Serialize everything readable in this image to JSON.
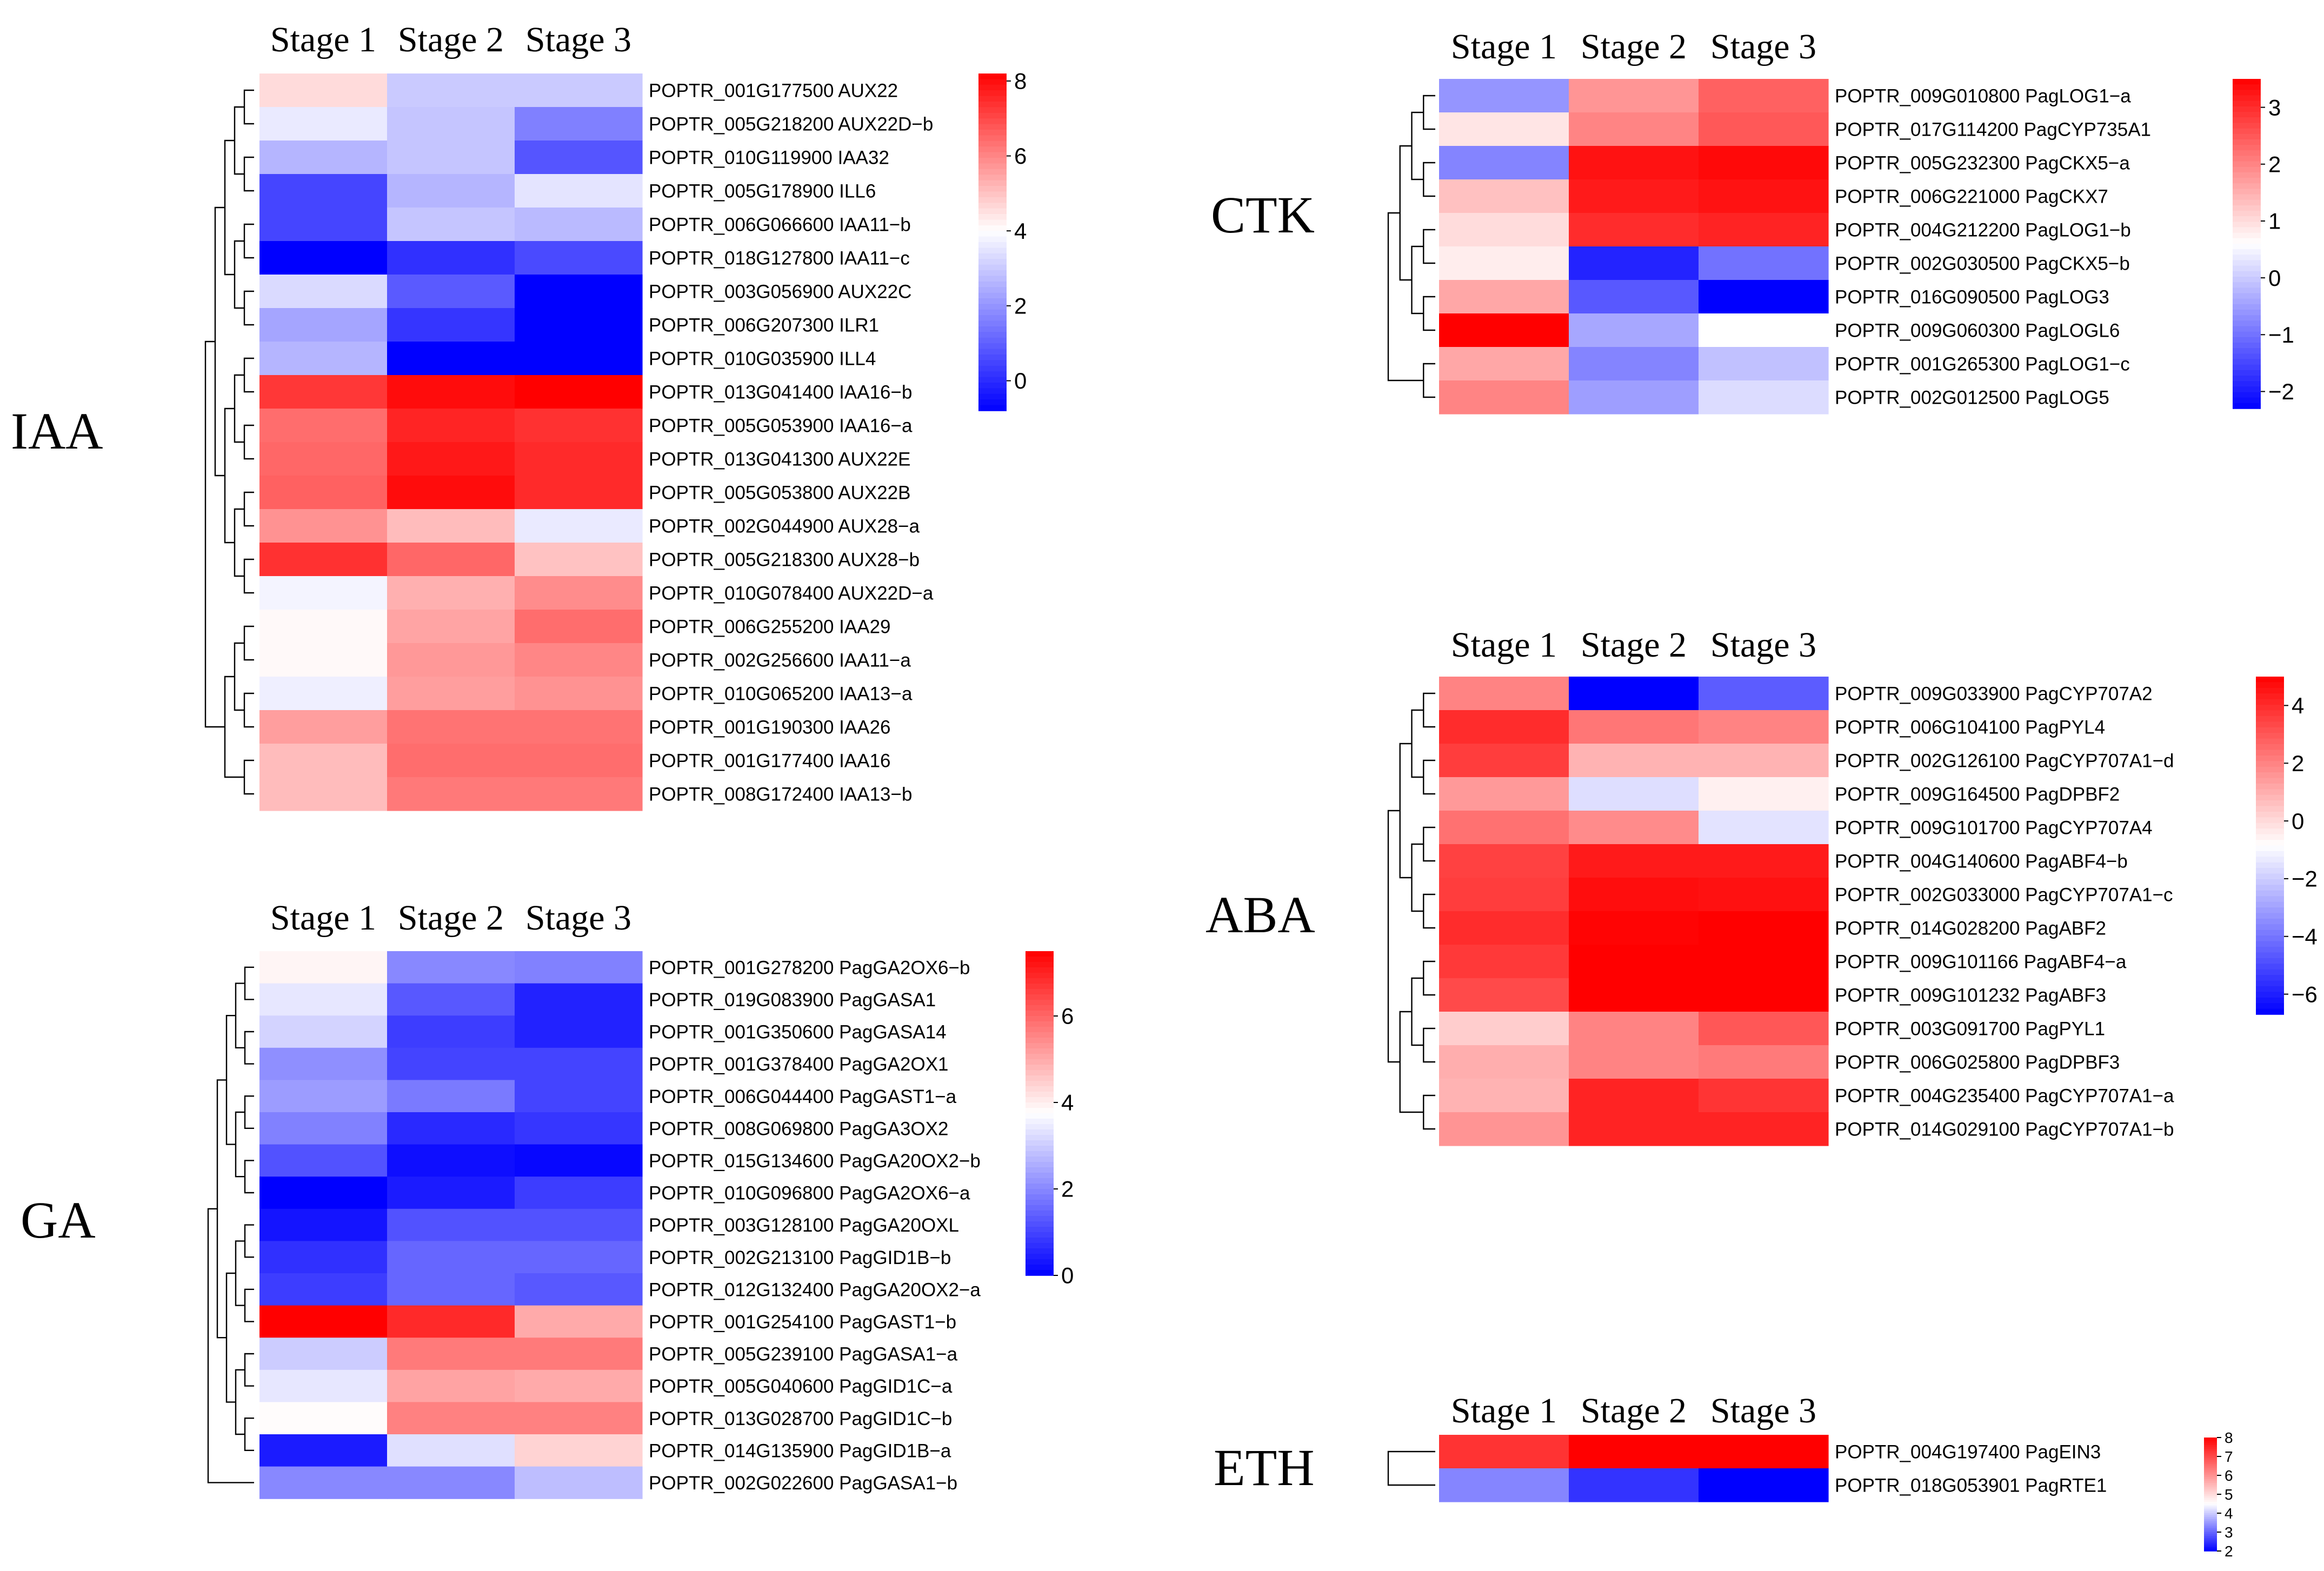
{
  "chart_data": [
    {
      "type": "heatmap",
      "title": "IAA",
      "columns": [
        "Stage 1",
        "Stage 2",
        "Stage 3"
      ],
      "colorbar": {
        "ticks": [
          0,
          2,
          4,
          6,
          8
        ],
        "min": -0.8,
        "max": 8.2,
        "mid": 4,
        "tick_labels": [
          "0",
          "2",
          "4",
          "6",
          "8"
        ]
      },
      "rows": [
        {
          "gene": "POPTR_001G177500",
          "name": "AUX22",
          "values": [
            4.6,
            3.0,
            3.0
          ]
        },
        {
          "gene": "POPTR_005G218200",
          "name": "AUX22D−b",
          "values": [
            3.6,
            2.9,
            1.6
          ]
        },
        {
          "gene": "POPTR_010G119900",
          "name": "IAA32",
          "values": [
            2.6,
            2.9,
            0.8
          ]
        },
        {
          "gene": "POPTR_005G178900",
          "name": "ILL6",
          "values": [
            0.5,
            2.6,
            3.5
          ]
        },
        {
          "gene": "POPTR_006G066600",
          "name": "IAA11−b",
          "values": [
            0.5,
            2.9,
            2.7
          ]
        },
        {
          "gene": "POPTR_018G127800",
          "name": "IAA11−c",
          "values": [
            -0.8,
            0.1,
            0.6
          ]
        },
        {
          "gene": "POPTR_003G056900",
          "name": "AUX22C",
          "values": [
            3.3,
            0.9,
            -0.8
          ]
        },
        {
          "gene": "POPTR_006G207300",
          "name": "ILR1",
          "values": [
            2.3,
            0.2,
            -0.8
          ]
        },
        {
          "gene": "POPTR_010G035900",
          "name": "ILL4",
          "values": [
            2.6,
            -0.8,
            -0.8
          ]
        },
        {
          "gene": "POPTR_013G041400",
          "name": "IAA16−b",
          "values": [
            7.3,
            8.0,
            8.2
          ]
        },
        {
          "gene": "POPTR_005G053900",
          "name": "IAA16−a",
          "values": [
            6.4,
            7.6,
            7.4
          ]
        },
        {
          "gene": "POPTR_013G041300",
          "name": "AUX22E",
          "values": [
            6.5,
            7.8,
            7.5
          ]
        },
        {
          "gene": "POPTR_005G053800",
          "name": "AUX22B",
          "values": [
            6.6,
            8.0,
            7.5
          ]
        },
        {
          "gene": "POPTR_002G044900",
          "name": "AUX28−a",
          "values": [
            5.8,
            5.1,
            3.6
          ]
        },
        {
          "gene": "POPTR_005G218300",
          "name": "AUX28−b",
          "values": [
            7.4,
            6.5,
            5.0
          ]
        },
        {
          "gene": "POPTR_010G078400",
          "name": "AUX22D−a",
          "values": [
            3.8,
            5.3,
            5.9
          ]
        },
        {
          "gene": "POPTR_006G255200",
          "name": "IAA29",
          "values": [
            4.1,
            5.5,
            6.4
          ]
        },
        {
          "gene": "POPTR_002G256600",
          "name": "IAA11−a",
          "values": [
            4.1,
            5.7,
            6.0
          ]
        },
        {
          "gene": "POPTR_010G065200",
          "name": "IAA13−a",
          "values": [
            3.7,
            5.6,
            5.8
          ]
        },
        {
          "gene": "POPTR_001G190300",
          "name": "IAA26",
          "values": [
            5.6,
            6.3,
            6.3
          ]
        },
        {
          "gene": "POPTR_001G177400",
          "name": "IAA16",
          "values": [
            5.1,
            6.4,
            6.4
          ]
        },
        {
          "gene": "POPTR_008G172400",
          "name": "IAA13−b",
          "values": [
            5.1,
            6.2,
            6.2
          ]
        }
      ]
    },
    {
      "type": "heatmap",
      "title": "GA",
      "columns": [
        "Stage 1",
        "Stage 2",
        "Stage 3"
      ],
      "colorbar": {
        "ticks": [
          0,
          2,
          4,
          6
        ],
        "min": 0,
        "max": 7.5,
        "mid": 3.75,
        "tick_labels": [
          "0",
          "2",
          "4",
          "6"
        ]
      },
      "rows": [
        {
          "gene": "POPTR_001G278200",
          "name": "PagGA2OX6−b",
          "values": [
            3.9,
            2.0,
            1.9
          ]
        },
        {
          "gene": "POPTR_019G083900",
          "name": "PagGASA1",
          "values": [
            3.4,
            1.3,
            0.5
          ]
        },
        {
          "gene": "POPTR_001G350600",
          "name": "PagGASA14",
          "values": [
            3.1,
            0.9,
            0.5
          ]
        },
        {
          "gene": "POPTR_001G378400",
          "name": "PagGA2OX1",
          "values": [
            2.1,
            1.0,
            1.0
          ]
        },
        {
          "gene": "POPTR_006G044400",
          "name": "PagGAST1−a",
          "values": [
            2.3,
            1.8,
            1.0
          ]
        },
        {
          "gene": "POPTR_008G069800",
          "name": "PagGA3OX2",
          "values": [
            1.9,
            0.6,
            0.8
          ]
        },
        {
          "gene": "POPTR_015G134600",
          "name": "PagGA20OX2−b",
          "values": [
            1.2,
            0.2,
            0.1
          ]
        },
        {
          "gene": "POPTR_010G096800",
          "name": "PagGA2OX6−a",
          "values": [
            0.0,
            0.4,
            0.9
          ]
        },
        {
          "gene": "POPTR_003G128100",
          "name": "PagGA20OXL",
          "values": [
            0.3,
            1.2,
            1.2
          ]
        },
        {
          "gene": "POPTR_002G213100",
          "name": "PagGID1B−b",
          "values": [
            0.7,
            1.5,
            1.5
          ]
        },
        {
          "gene": "POPTR_012G132400",
          "name": "PagGA20OX2−a",
          "values": [
            0.9,
            1.5,
            1.3
          ]
        },
        {
          "gene": "POPTR_001G254100",
          "name": "PagGAST1−b",
          "values": [
            7.5,
            6.9,
            5.0
          ]
        },
        {
          "gene": "POPTR_005G239100",
          "name": "PagGASA1−a",
          "values": [
            3.0,
            5.7,
            5.7
          ]
        },
        {
          "gene": "POPTR_005G040600",
          "name": "PagGID1C−a",
          "values": [
            3.4,
            5.1,
            5.0
          ]
        },
        {
          "gene": "POPTR_013G028700",
          "name": "PagGID1C−b",
          "values": [
            3.8,
            5.6,
            5.6
          ]
        },
        {
          "gene": "POPTR_014G135900",
          "name": "PagGID1B−a",
          "values": [
            0.4,
            3.3,
            4.4
          ]
        },
        {
          "gene": "POPTR_002G022600",
          "name": "PagGASA1−b",
          "values": [
            2.0,
            2.0,
            2.8
          ]
        }
      ]
    },
    {
      "type": "heatmap",
      "title": "CTK",
      "columns": [
        "Stage 1",
        "Stage 2",
        "Stage 3"
      ],
      "colorbar": {
        "ticks": [
          -2,
          -1,
          0,
          1,
          2,
          3
        ],
        "min": -2.3,
        "max": 3.5,
        "mid": 0.6,
        "tick_labels": [
          "−2",
          "−1",
          "0",
          "1",
          "2",
          "3"
        ]
      },
      "rows": [
        {
          "gene": "POPTR_009G010800",
          "name": "PagLOG1−a",
          "values": [
            -0.6,
            1.8,
            2.4
          ]
        },
        {
          "gene": "POPTR_017G114200",
          "name": "PagCYP735A1",
          "values": [
            0.9,
            2.0,
            2.5
          ]
        },
        {
          "gene": "POPTR_005G232300",
          "name": "PagCKX5−a",
          "values": [
            -0.8,
            3.3,
            3.4
          ]
        },
        {
          "gene": "POPTR_006G221000",
          "name": "PagCKX7",
          "values": [
            1.3,
            3.2,
            3.3
          ]
        },
        {
          "gene": "POPTR_004G212200",
          "name": "PagLOG1−b",
          "values": [
            1.0,
            3.0,
            3.1
          ]
        },
        {
          "gene": "POPTR_002G030500",
          "name": "PagCKX5−b",
          "values": [
            0.8,
            -1.9,
            -1.0
          ]
        },
        {
          "gene": "POPTR_016G090500",
          "name": "PagLOG3",
          "values": [
            1.6,
            -1.3,
            -2.3
          ]
        },
        {
          "gene": "POPTR_009G060300",
          "name": "PagLOGL6",
          "values": [
            3.5,
            -0.4,
            0.6
          ]
        },
        {
          "gene": "POPTR_001G265300",
          "name": "PagLOG1−c",
          "values": [
            1.6,
            -0.8,
            -0.1
          ]
        },
        {
          "gene": "POPTR_002G012500",
          "name": "PagLOG5",
          "values": [
            2.0,
            -0.5,
            0.2
          ]
        }
      ]
    },
    {
      "type": "heatmap",
      "title": "ABA",
      "columns": [
        "Stage 1",
        "Stage 2",
        "Stage 3"
      ],
      "colorbar": {
        "ticks": [
          -6,
          -4,
          -2,
          0,
          2,
          4
        ],
        "min": -6.7,
        "max": 5.0,
        "mid": -0.85,
        "tick_labels": [
          "−6",
          "−4",
          "−2",
          "0",
          "2",
          "4"
        ]
      },
      "rows": [
        {
          "gene": "POPTR_009G033900",
          "name": "PagCYP707A2",
          "values": [
            2.0,
            -6.7,
            -4.6
          ]
        },
        {
          "gene": "POPTR_006G104100",
          "name": "PagPYL4",
          "values": [
            4.0,
            2.3,
            2.0
          ]
        },
        {
          "gene": "POPTR_002G126100",
          "name": "PagCYP707A1−d",
          "values": [
            3.6,
            0.9,
            0.9
          ]
        },
        {
          "gene": "POPTR_009G164500",
          "name": "PagDPBF2",
          "values": [
            1.5,
            -1.6,
            -0.5
          ]
        },
        {
          "gene": "POPTR_009G101700",
          "name": "PagCYP707A4",
          "values": [
            2.4,
            1.8,
            -1.5
          ]
        },
        {
          "gene": "POPTR_004G140600",
          "name": "PagABF4−b",
          "values": [
            3.5,
            4.4,
            4.4
          ]
        },
        {
          "gene": "POPTR_002G033000",
          "name": "PagCYP707A1−c",
          "values": [
            3.6,
            4.7,
            4.6
          ]
        },
        {
          "gene": "POPTR_014G028200",
          "name": "PagABF2",
          "values": [
            4.0,
            4.9,
            5.0
          ]
        },
        {
          "gene": "POPTR_009G101166",
          "name": "PagABF4−a",
          "values": [
            3.7,
            5.0,
            5.0
          ]
        },
        {
          "gene": "POPTR_009G101232",
          "name": "PagABF3",
          "values": [
            3.3,
            5.0,
            5.0
          ]
        },
        {
          "gene": "POPTR_003G091700",
          "name": "PagPYL1",
          "values": [
            0.3,
            2.0,
            3.0
          ]
        },
        {
          "gene": "POPTR_006G025800",
          "name": "PagDPBF3",
          "values": [
            1.0,
            2.0,
            2.2
          ]
        },
        {
          "gene": "POPTR_004G235400",
          "name": "PagCYP707A1−a",
          "values": [
            0.9,
            4.2,
            3.8
          ]
        },
        {
          "gene": "POPTR_014G029100",
          "name": "PagCYP707A1−b",
          "values": [
            1.6,
            4.2,
            4.2
          ]
        }
      ]
    },
    {
      "type": "heatmap",
      "title": "ETH",
      "columns": [
        "Stage 1",
        "Stage 2",
        "Stage 3"
      ],
      "colorbar": {
        "ticks": [
          2,
          3,
          4,
          5,
          6,
          7,
          8
        ],
        "min": 2,
        "max": 8,
        "mid": 4.5,
        "tick_labels": [
          "2",
          "3",
          "4",
          "5",
          "6",
          "7",
          "8"
        ]
      },
      "rows": [
        {
          "gene": "POPTR_004G197400",
          "name": "PagEIN3",
          "values": [
            7.3,
            8.0,
            8.0
          ]
        },
        {
          "gene": "POPTR_018G053901",
          "name": "PagRTE1",
          "values": [
            3.3,
            2.5,
            2.0
          ]
        }
      ]
    }
  ]
}
